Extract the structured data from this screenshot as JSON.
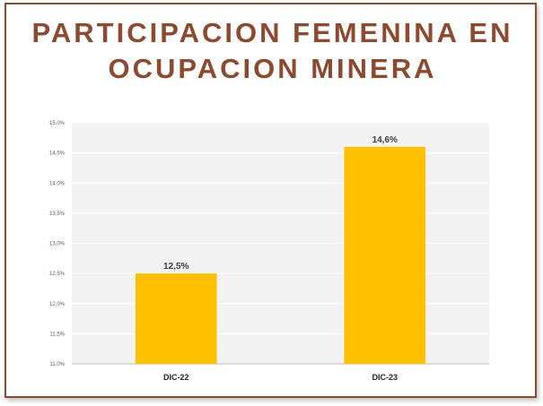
{
  "header": {
    "title_line1": "PARTICIPACION FEMENINA EN",
    "title_line2": "OCUPACION MINERA"
  },
  "colors": {
    "title": "#8c4a2f",
    "border": "#8c4a2f",
    "bar": "#ffc000",
    "plot_bg": "#f2f2f2",
    "grid": "#ffffff"
  },
  "chart_data": {
    "type": "bar",
    "categories": [
      "DIC-22",
      "DIC-23"
    ],
    "values": [
      12.5,
      14.6
    ],
    "value_labels": [
      "12,5%",
      "14,6%"
    ],
    "ylim": [
      11.0,
      15.0
    ],
    "ytick_values": [
      11.0,
      11.5,
      12.0,
      12.5,
      13.0,
      13.5,
      14.0,
      14.5,
      15.0
    ],
    "ytick_labels": [
      "11,0%",
      "11,5%",
      "12,0%",
      "12,5%",
      "13,0%",
      "13,5%",
      "14,0%",
      "14,5%",
      "15,0%"
    ],
    "grid": true,
    "legend": "none"
  }
}
